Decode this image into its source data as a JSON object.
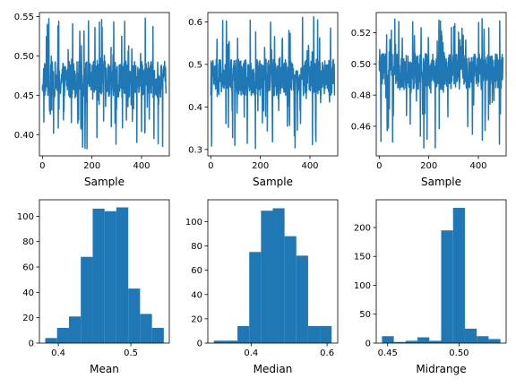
{
  "colors": {
    "series": "#1f77b4"
  },
  "chart_data": [
    {
      "type": "line",
      "xlabel": "Sample",
      "xlim": [
        -12,
        512
      ],
      "ylim": [
        0.373,
        0.555
      ],
      "xticks": [
        0,
        200,
        400
      ],
      "yticks": [
        0.4,
        0.45,
        0.5,
        0.55
      ],
      "ytick_labels": [
        "0.40",
        "0.45",
        "0.50",
        "0.55"
      ],
      "y_summary": {
        "center": 0.47,
        "min": 0.382,
        "max": 0.548,
        "n": 500
      }
    },
    {
      "type": "line",
      "xlabel": "Sample",
      "xlim": [
        -12,
        512
      ],
      "ylim": [
        0.285,
        0.622
      ],
      "xticks": [
        0,
        200,
        400
      ],
      "yticks": [
        0.3,
        0.4,
        0.5,
        0.6
      ],
      "ytick_labels": [
        "0.3",
        "0.4",
        "0.5",
        "0.6"
      ],
      "y_summary": {
        "center": 0.47,
        "min": 0.302,
        "max": 0.612,
        "n": 500
      }
    },
    {
      "type": "line",
      "xlabel": "Sample",
      "xlim": [
        -12,
        512
      ],
      "ylim": [
        0.441,
        0.533
      ],
      "xticks": [
        0,
        200,
        400
      ],
      "yticks": [
        0.46,
        0.48,
        0.5,
        0.52
      ],
      "ytick_labels": [
        "0.46",
        "0.48",
        "0.50",
        "0.52"
      ],
      "y_summary": {
        "center": 0.495,
        "min": 0.446,
        "max": 0.529,
        "n": 500
      }
    },
    {
      "type": "bar",
      "xlabel": "Mean",
      "bin_edges": [
        0.382,
        0.3983,
        0.4147,
        0.431,
        0.4474,
        0.4637,
        0.48,
        0.4964,
        0.5127,
        0.5291,
        0.5454
      ],
      "values": [
        4,
        12,
        21,
        68,
        106,
        104,
        107,
        43,
        23,
        12
      ],
      "xlim": [
        0.374,
        0.553
      ],
      "ylim": [
        0,
        113
      ],
      "xticks": [
        0.4,
        0.5
      ],
      "xtick_labels": [
        "0.4",
        "0.5"
      ],
      "yticks": [
        0,
        20,
        40,
        60,
        80,
        100
      ],
      "ytick_labels": [
        "0",
        "20",
        "40",
        "60",
        "80",
        "100"
      ]
    },
    {
      "type": "bar",
      "xlabel": "Median",
      "bin_edges": [
        0.302,
        0.333,
        0.364,
        0.395,
        0.426,
        0.457,
        0.488,
        0.519,
        0.55,
        0.581,
        0.612
      ],
      "values": [
        2,
        2,
        14,
        75,
        109,
        111,
        88,
        72,
        14,
        14
      ],
      "xlim": [
        0.286,
        0.628
      ],
      "ylim": [
        0,
        118
      ],
      "xticks": [
        0.4,
        0.6
      ],
      "xtick_labels": [
        "0.4",
        "0.6"
      ],
      "yticks": [
        0,
        20,
        40,
        60,
        80,
        100
      ],
      "ytick_labels": [
        "0",
        "20",
        "40",
        "60",
        "80",
        "100"
      ]
    },
    {
      "type": "bar",
      "xlabel": "Midrange",
      "bin_edges": [
        0.446,
        0.4543,
        0.4626,
        0.4709,
        0.4792,
        0.4875,
        0.4958,
        0.5041,
        0.5124,
        0.5207,
        0.529
      ],
      "values": [
        12,
        2,
        4,
        10,
        4,
        195,
        234,
        25,
        12,
        7
      ],
      "xlim": [
        0.442,
        0.533
      ],
      "ylim": [
        0,
        248
      ],
      "xticks": [
        0.45,
        0.5
      ],
      "xtick_labels": [
        "0.45",
        "0.50"
      ],
      "yticks": [
        0,
        50,
        100,
        150,
        200
      ],
      "ytick_labels": [
        "0",
        "50",
        "100",
        "150",
        "200"
      ]
    }
  ]
}
